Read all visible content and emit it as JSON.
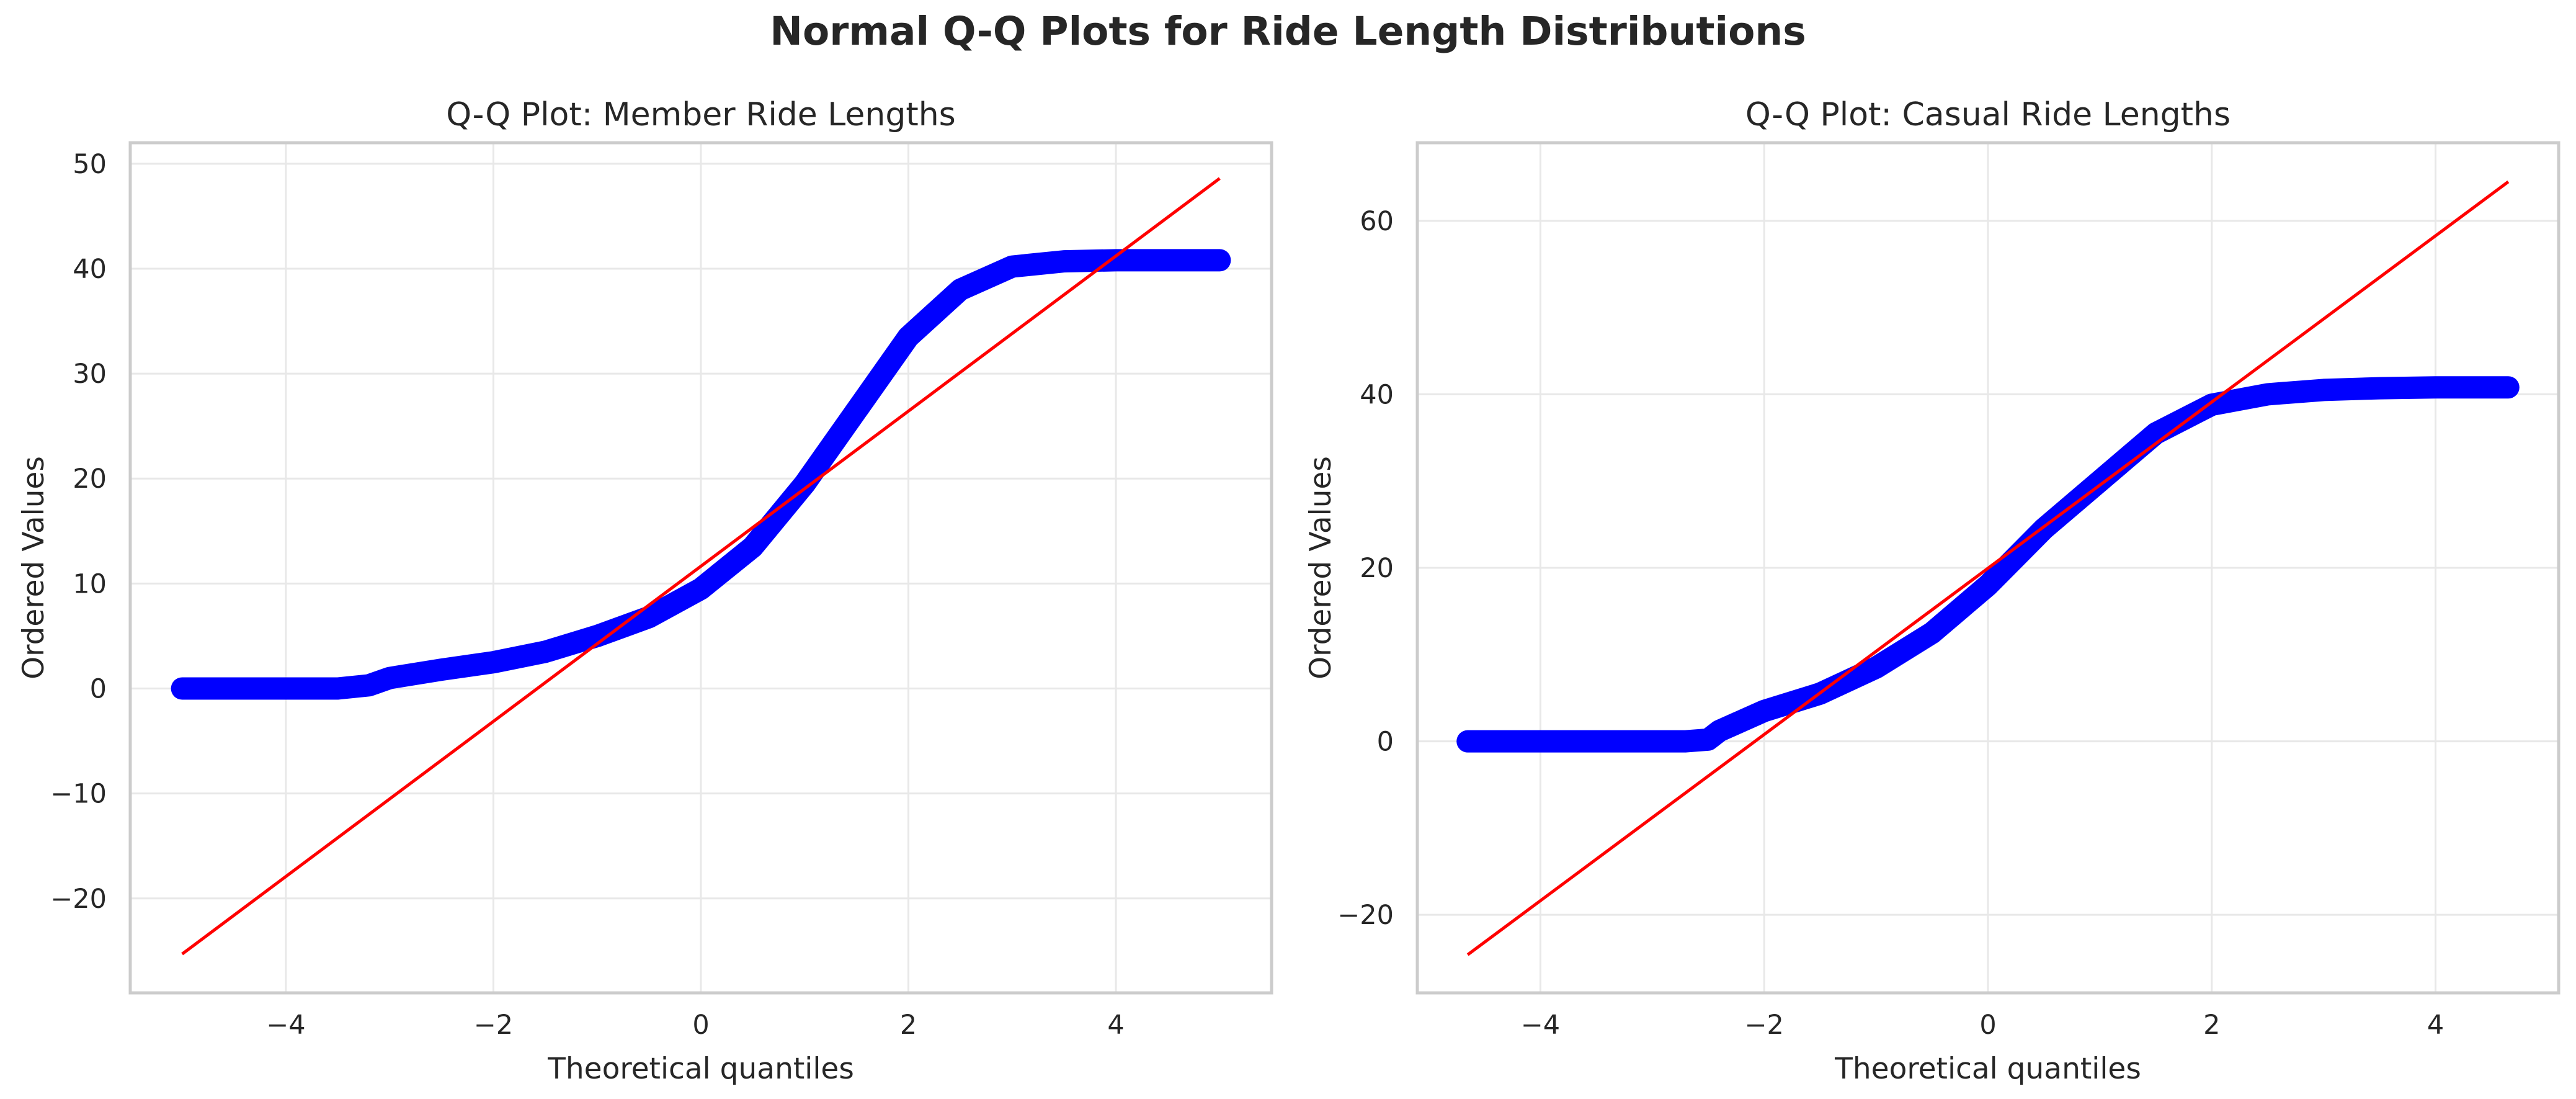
{
  "figure": {
    "title": "Normal Q-Q Plots for Ride Length Distributions"
  },
  "colors": {
    "points": "#0000ff",
    "fit_line": "#ff0000",
    "grid": "#e8e8e8",
    "frame": "#cccccc",
    "text": "#262626"
  },
  "chart_data": [
    {
      "type": "scatter",
      "title": "Q-Q Plot: Member Ride Lengths",
      "xlabel": "Theoretical quantiles",
      "ylabel": "Ordered Values",
      "xlim": [
        -5.5,
        5.5
      ],
      "ylim": [
        -29,
        52
      ],
      "xticks": [
        -4,
        -2,
        0,
        2,
        4
      ],
      "yticks": [
        -20,
        -10,
        0,
        10,
        20,
        30,
        40,
        50
      ],
      "grid": true,
      "points": [
        [
          -5.0,
          0.0
        ],
        [
          -4.8,
          0.0
        ],
        [
          -4.5,
          0.0
        ],
        [
          -4.2,
          0.0
        ],
        [
          -4.0,
          0.0
        ],
        [
          -3.7,
          0.0
        ],
        [
          -3.5,
          0.0
        ],
        [
          -3.2,
          0.3
        ],
        [
          -3.0,
          1.0
        ],
        [
          -2.5,
          1.8
        ],
        [
          -2.0,
          2.5
        ],
        [
          -1.5,
          3.5
        ],
        [
          -1.0,
          5.0
        ],
        [
          -0.5,
          6.8
        ],
        [
          0.0,
          9.5
        ],
        [
          0.5,
          13.5
        ],
        [
          1.0,
          19.5
        ],
        [
          1.5,
          26.5
        ],
        [
          2.0,
          33.5
        ],
        [
          2.5,
          38.0
        ],
        [
          3.0,
          40.2
        ],
        [
          3.5,
          40.7
        ],
        [
          4.0,
          40.8
        ],
        [
          4.5,
          40.8
        ],
        [
          4.9,
          40.8
        ],
        [
          5.0,
          40.8
        ]
      ],
      "fit_line": [
        [
          -5.0,
          -25.3
        ],
        [
          5.0,
          48.6
        ]
      ]
    },
    {
      "type": "scatter",
      "title": "Q-Q Plot: Casual Ride Lengths",
      "xlabel": "Theoretical quantiles",
      "ylabel": "Ordered Values",
      "xlim": [
        -5.1,
        5.1
      ],
      "ylim": [
        -29,
        69
      ],
      "xticks": [
        -4,
        -2,
        0,
        2,
        4
      ],
      "yticks": [
        -20,
        0,
        20,
        40,
        60
      ],
      "grid": true,
      "points": [
        [
          -4.65,
          0.0
        ],
        [
          -4.5,
          0.0
        ],
        [
          -4.2,
          0.0
        ],
        [
          -3.8,
          0.0
        ],
        [
          -3.5,
          0.0
        ],
        [
          -3.0,
          0.0
        ],
        [
          -2.7,
          0.0
        ],
        [
          -2.5,
          0.2
        ],
        [
          -2.4,
          1.2
        ],
        [
          -2.0,
          3.5
        ],
        [
          -1.5,
          5.5
        ],
        [
          -1.0,
          8.5
        ],
        [
          -0.5,
          12.5
        ],
        [
          0.0,
          18.0
        ],
        [
          0.5,
          24.5
        ],
        [
          1.0,
          30.0
        ],
        [
          1.5,
          35.5
        ],
        [
          2.0,
          38.8
        ],
        [
          2.5,
          40.0
        ],
        [
          3.0,
          40.5
        ],
        [
          3.5,
          40.7
        ],
        [
          4.0,
          40.8
        ],
        [
          4.5,
          40.8
        ],
        [
          4.65,
          40.8
        ]
      ],
      "fit_line": [
        [
          -4.65,
          -24.6
        ],
        [
          4.65,
          64.5
        ]
      ]
    }
  ]
}
